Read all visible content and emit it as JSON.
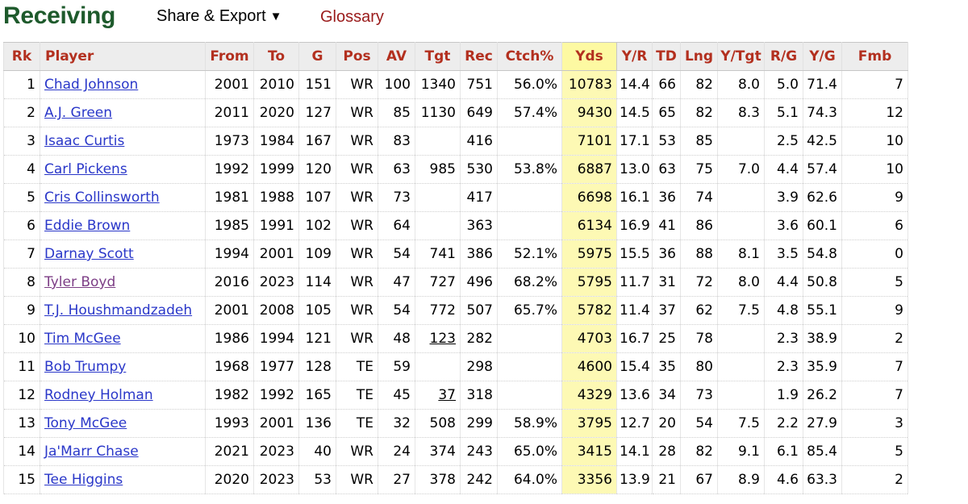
{
  "header": {
    "title": "Receiving",
    "share_label": "Share & Export",
    "share_arrow": "▼",
    "glossary_label": "Glossary"
  },
  "colors": {
    "title": "#1e5a2c",
    "header_text": "#b3301f",
    "link": "#2a37c9",
    "visited_link": "#7d3e86",
    "sorted_column": "#fdf9b4"
  },
  "table": {
    "columns": [
      "Rk",
      "Player",
      "From",
      "To",
      "G",
      "Pos",
      "AV",
      "Tgt",
      "Rec",
      "Ctch%",
      "Yds",
      "Y/R",
      "TD",
      "Lng",
      "Y/Tgt",
      "R/G",
      "Y/G",
      "Fmb"
    ],
    "sorted_column": "Yds",
    "rows": [
      {
        "rk": "1",
        "player": "Chad Johnson",
        "visited": false,
        "from": "2001",
        "to": "2010",
        "g": "151",
        "pos": "WR",
        "av": "100",
        "tgt": "1340",
        "tgt_underline": false,
        "rec": "751",
        "ctch": "56.0%",
        "yds": "10783",
        "yr": "14.4",
        "td": "66",
        "lng": "82",
        "ytgt": "8.0",
        "rg": "5.0",
        "yg": "71.4",
        "fmb": "7"
      },
      {
        "rk": "2",
        "player": "A.J. Green",
        "visited": false,
        "from": "2011",
        "to": "2020",
        "g": "127",
        "pos": "WR",
        "av": "85",
        "tgt": "1130",
        "tgt_underline": false,
        "rec": "649",
        "ctch": "57.4%",
        "yds": "9430",
        "yr": "14.5",
        "td": "65",
        "lng": "82",
        "ytgt": "8.3",
        "rg": "5.1",
        "yg": "74.3",
        "fmb": "12"
      },
      {
        "rk": "3",
        "player": "Isaac Curtis",
        "visited": false,
        "from": "1973",
        "to": "1984",
        "g": "167",
        "pos": "WR",
        "av": "83",
        "tgt": "",
        "tgt_underline": false,
        "rec": "416",
        "ctch": "",
        "yds": "7101",
        "yr": "17.1",
        "td": "53",
        "lng": "85",
        "ytgt": "",
        "rg": "2.5",
        "yg": "42.5",
        "fmb": "10"
      },
      {
        "rk": "4",
        "player": "Carl Pickens",
        "visited": false,
        "from": "1992",
        "to": "1999",
        "g": "120",
        "pos": "WR",
        "av": "63",
        "tgt": "985",
        "tgt_underline": false,
        "rec": "530",
        "ctch": "53.8%",
        "yds": "6887",
        "yr": "13.0",
        "td": "63",
        "lng": "75",
        "ytgt": "7.0",
        "rg": "4.4",
        "yg": "57.4",
        "fmb": "10"
      },
      {
        "rk": "5",
        "player": "Cris Collinsworth",
        "visited": false,
        "from": "1981",
        "to": "1988",
        "g": "107",
        "pos": "WR",
        "av": "73",
        "tgt": "",
        "tgt_underline": false,
        "rec": "417",
        "ctch": "",
        "yds": "6698",
        "yr": "16.1",
        "td": "36",
        "lng": "74",
        "ytgt": "",
        "rg": "3.9",
        "yg": "62.6",
        "fmb": "9"
      },
      {
        "rk": "6",
        "player": "Eddie Brown",
        "visited": false,
        "from": "1985",
        "to": "1991",
        "g": "102",
        "pos": "WR",
        "av": "64",
        "tgt": "",
        "tgt_underline": false,
        "rec": "363",
        "ctch": "",
        "yds": "6134",
        "yr": "16.9",
        "td": "41",
        "lng": "86",
        "ytgt": "",
        "rg": "3.6",
        "yg": "60.1",
        "fmb": "6"
      },
      {
        "rk": "7",
        "player": "Darnay Scott",
        "visited": false,
        "from": "1994",
        "to": "2001",
        "g": "109",
        "pos": "WR",
        "av": "54",
        "tgt": "741",
        "tgt_underline": false,
        "rec": "386",
        "ctch": "52.1%",
        "yds": "5975",
        "yr": "15.5",
        "td": "36",
        "lng": "88",
        "ytgt": "8.1",
        "rg": "3.5",
        "yg": "54.8",
        "fmb": "0"
      },
      {
        "rk": "8",
        "player": "Tyler Boyd",
        "visited": true,
        "from": "2016",
        "to": "2023",
        "g": "114",
        "pos": "WR",
        "av": "47",
        "tgt": "727",
        "tgt_underline": false,
        "rec": "496",
        "ctch": "68.2%",
        "yds": "5795",
        "yr": "11.7",
        "td": "31",
        "lng": "72",
        "ytgt": "8.0",
        "rg": "4.4",
        "yg": "50.8",
        "fmb": "5"
      },
      {
        "rk": "9",
        "player": "T.J. Houshmandzadeh",
        "visited": false,
        "from": "2001",
        "to": "2008",
        "g": "105",
        "pos": "WR",
        "av": "54",
        "tgt": "772",
        "tgt_underline": false,
        "rec": "507",
        "ctch": "65.7%",
        "yds": "5782",
        "yr": "11.4",
        "td": "37",
        "lng": "62",
        "ytgt": "7.5",
        "rg": "4.8",
        "yg": "55.1",
        "fmb": "9"
      },
      {
        "rk": "10",
        "player": "Tim McGee",
        "visited": false,
        "from": "1986",
        "to": "1994",
        "g": "121",
        "pos": "WR",
        "av": "48",
        "tgt": "123",
        "tgt_underline": true,
        "rec": "282",
        "ctch": "",
        "yds": "4703",
        "yr": "16.7",
        "td": "25",
        "lng": "78",
        "ytgt": "",
        "rg": "2.3",
        "yg": "38.9",
        "fmb": "2"
      },
      {
        "rk": "11",
        "player": "Bob Trumpy",
        "visited": false,
        "from": "1968",
        "to": "1977",
        "g": "128",
        "pos": "TE",
        "av": "59",
        "tgt": "",
        "tgt_underline": false,
        "rec": "298",
        "ctch": "",
        "yds": "4600",
        "yr": "15.4",
        "td": "35",
        "lng": "80",
        "ytgt": "",
        "rg": "2.3",
        "yg": "35.9",
        "fmb": "7"
      },
      {
        "rk": "12",
        "player": "Rodney Holman",
        "visited": false,
        "from": "1982",
        "to": "1992",
        "g": "165",
        "pos": "TE",
        "av": "45",
        "tgt": "37",
        "tgt_underline": true,
        "rec": "318",
        "ctch": "",
        "yds": "4329",
        "yr": "13.6",
        "td": "34",
        "lng": "73",
        "ytgt": "",
        "rg": "1.9",
        "yg": "26.2",
        "fmb": "7"
      },
      {
        "rk": "13",
        "player": "Tony McGee",
        "visited": false,
        "from": "1993",
        "to": "2001",
        "g": "136",
        "pos": "TE",
        "av": "32",
        "tgt": "508",
        "tgt_underline": false,
        "rec": "299",
        "ctch": "58.9%",
        "yds": "3795",
        "yr": "12.7",
        "td": "20",
        "lng": "54",
        "ytgt": "7.5",
        "rg": "2.2",
        "yg": "27.9",
        "fmb": "3"
      },
      {
        "rk": "14",
        "player": "Ja'Marr Chase",
        "visited": false,
        "from": "2021",
        "to": "2023",
        "g": "40",
        "pos": "WR",
        "av": "24",
        "tgt": "374",
        "tgt_underline": false,
        "rec": "243",
        "ctch": "65.0%",
        "yds": "3415",
        "yr": "14.1",
        "td": "28",
        "lng": "82",
        "ytgt": "9.1",
        "rg": "6.1",
        "yg": "85.4",
        "fmb": "5"
      },
      {
        "rk": "15",
        "player": "Tee Higgins",
        "visited": false,
        "from": "2020",
        "to": "2023",
        "g": "53",
        "pos": "WR",
        "av": "27",
        "tgt": "378",
        "tgt_underline": false,
        "rec": "242",
        "ctch": "64.0%",
        "yds": "3356",
        "yr": "13.9",
        "td": "21",
        "lng": "67",
        "ytgt": "8.9",
        "rg": "4.6",
        "yg": "63.3",
        "fmb": "2"
      }
    ]
  }
}
